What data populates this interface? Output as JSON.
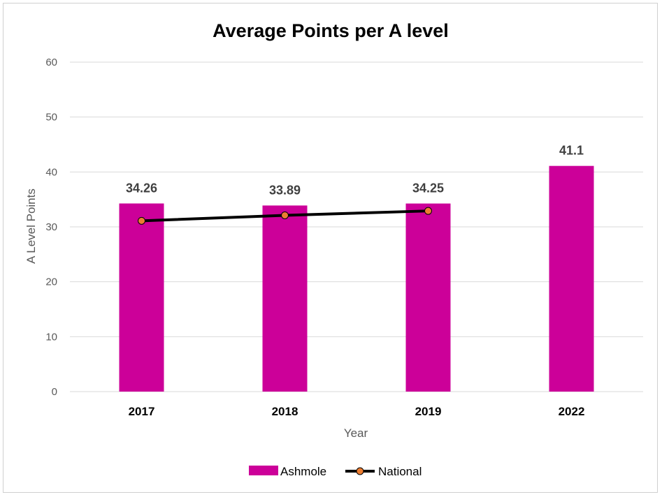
{
  "chart_data": {
    "type": "bar",
    "title": "Average Points per A level",
    "xlabel": "Year",
    "ylabel": "A Level Points",
    "categories": [
      "2017",
      "2018",
      "2019",
      "2022"
    ],
    "ylim": [
      0,
      60
    ],
    "yticks": [
      0,
      10,
      20,
      30,
      40,
      50,
      60
    ],
    "grid": true,
    "legend_position": "bottom",
    "series": [
      {
        "name": "Ashmole",
        "type": "bar",
        "color": "#cc0099",
        "values": [
          34.26,
          33.89,
          34.25,
          41.1
        ],
        "labels": [
          "34.26",
          "33.89",
          "34.25",
          "41.1"
        ]
      },
      {
        "name": "National",
        "type": "line",
        "color": "#000000",
        "marker_color": "#ed7d31",
        "values": [
          31.1,
          32.1,
          32.9,
          null
        ]
      }
    ]
  }
}
